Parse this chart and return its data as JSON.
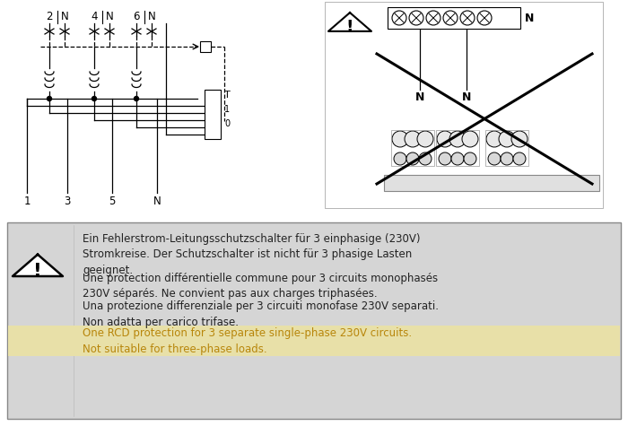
{
  "bg_color": "#f5f5f5",
  "outer_bg": "#ffffff",
  "border_color": "#888888",
  "text_color": "#222222",
  "orange_text_color": "#b8860b",
  "highlight_bg": "#e8e0a8",
  "gray_bg": "#d5d5d5",
  "german_text": "Ein Fehlerstrom-Leitungsschutzschalter für 3 einphasige (230V)\nStromkreise. Der Schutzschalter ist nicht für 3 phasige Lasten\ngeeignet.",
  "french_text": "Une protection différentielle commune pour 3 circuits monophasés\n230V séparés. Ne convient pas aux charges triphasées.",
  "italian_text": "Una protezione differenziale per 3 circuiti monofase 230V separati.\nNon adatta per carico trifase.",
  "english_text": "One RCD protection for 3 separate single-phase 230V circuits.\nNot suitable for three-phase loads.",
  "font_size": 8.5
}
